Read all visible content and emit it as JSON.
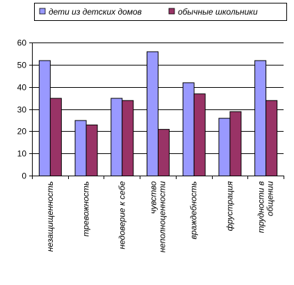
{
  "chart_data": {
    "type": "bar",
    "categories": [
      "незащищенность",
      "тревожность",
      "недоверие к себе",
      "чувство неполноценности",
      "враждебность",
      "фрустрация",
      "трудности в общении"
    ],
    "category_lines": [
      [
        "незащищенность"
      ],
      [
        "тревожность"
      ],
      [
        "недоверие к себе"
      ],
      [
        "чувство",
        "неполноценности"
      ],
      [
        "враждебность"
      ],
      [
        "фрустрация"
      ],
      [
        "трудности в",
        "общении"
      ]
    ],
    "series": [
      {
        "name": "дети из детских домов",
        "color": "#9999ff",
        "values": [
          52,
          25,
          35,
          56,
          42,
          26,
          52
        ]
      },
      {
        "name": "обычные школьники",
        "color": "#993366",
        "values": [
          35,
          23,
          34,
          21,
          37,
          29,
          34
        ]
      }
    ],
    "ylim": [
      0,
      60
    ],
    "yticks": [
      0,
      10,
      20,
      30,
      40,
      50,
      60
    ],
    "grid": true,
    "legend_position": "top"
  }
}
